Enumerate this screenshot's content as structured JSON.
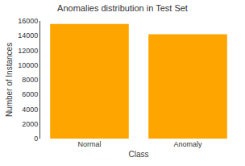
{
  "chart_data": {
    "type": "bar",
    "title": "Anomalies distribution in Test Set",
    "categories": [
      "Normal",
      "Anomaly"
    ],
    "values": [
      15600,
      14200
    ],
    "color": "#FFA500",
    "xlabel": "Class",
    "ylabel": "Number of Instances",
    "ylim": [
      0,
      16000
    ],
    "yticks": [
      0,
      2000,
      4000,
      6000,
      8000,
      10000,
      12000,
      14000,
      16000
    ],
    "grid": false
  }
}
